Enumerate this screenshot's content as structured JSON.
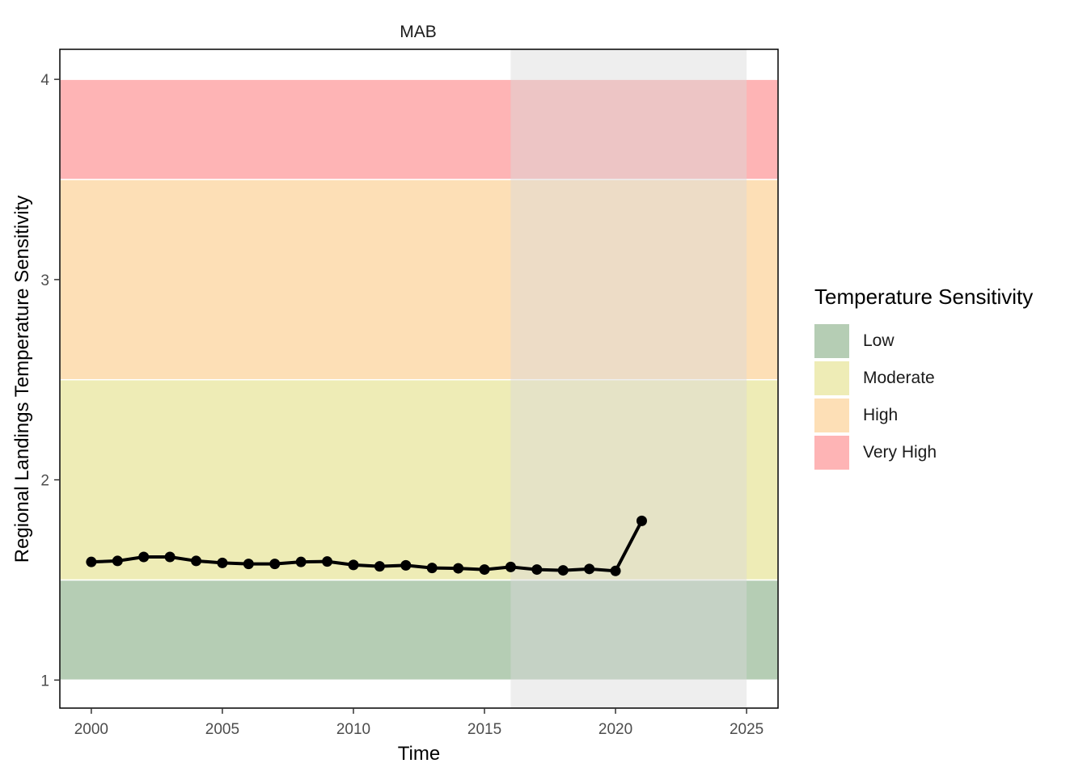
{
  "chart_data": {
    "type": "line",
    "title": "MAB",
    "xlabel": "Time",
    "ylabel": "Regional Landings Temperature Sensitivity",
    "xlim": [
      1998.8,
      2026.2
    ],
    "ylim": [
      0.86,
      4.15
    ],
    "x_ticks": [
      2000,
      2005,
      2010,
      2015,
      2020,
      2025
    ],
    "y_ticks": [
      1,
      2,
      3,
      4
    ],
    "grid": false,
    "legend": {
      "title": "Temperature Sensitivity",
      "position": "right",
      "items": [
        {
          "label": "Low",
          "color": "#b5cdb4"
        },
        {
          "label": "Moderate",
          "color": "#eeecb6"
        },
        {
          "label": "High",
          "color": "#fddfb6"
        },
        {
          "label": "Very High",
          "color": "#feb4b5"
        }
      ]
    },
    "bands": [
      {
        "category": "Low",
        "ymin": 1.0,
        "ymax": 1.5,
        "color": "#b5cdb4"
      },
      {
        "category": "Moderate",
        "ymin": 1.5,
        "ymax": 2.5,
        "color": "#eeecb6"
      },
      {
        "category": "High",
        "ymin": 2.5,
        "ymax": 3.5,
        "color": "#fddfb6"
      },
      {
        "category": "Very High",
        "ymin": 3.5,
        "ymax": 4.0,
        "color": "#feb4b5"
      }
    ],
    "shaded_region": {
      "xmin": 2016,
      "xmax": 2025,
      "color": "#d9d9d9"
    },
    "series": [
      {
        "x": [
          2000,
          2001,
          2002,
          2003,
          2004,
          2005,
          2006,
          2007,
          2008,
          2009,
          2010,
          2011,
          2012,
          2013,
          2014,
          2015,
          2016,
          2017,
          2018,
          2019,
          2020,
          2021
        ],
        "values": [
          1.59,
          1.595,
          1.615,
          1.615,
          1.595,
          1.585,
          1.58,
          1.58,
          1.59,
          1.592,
          1.575,
          1.568,
          1.573,
          1.56,
          1.558,
          1.552,
          1.565,
          1.552,
          1.548,
          1.555,
          1.545,
          1.795
        ],
        "color": "#000000"
      }
    ]
  }
}
